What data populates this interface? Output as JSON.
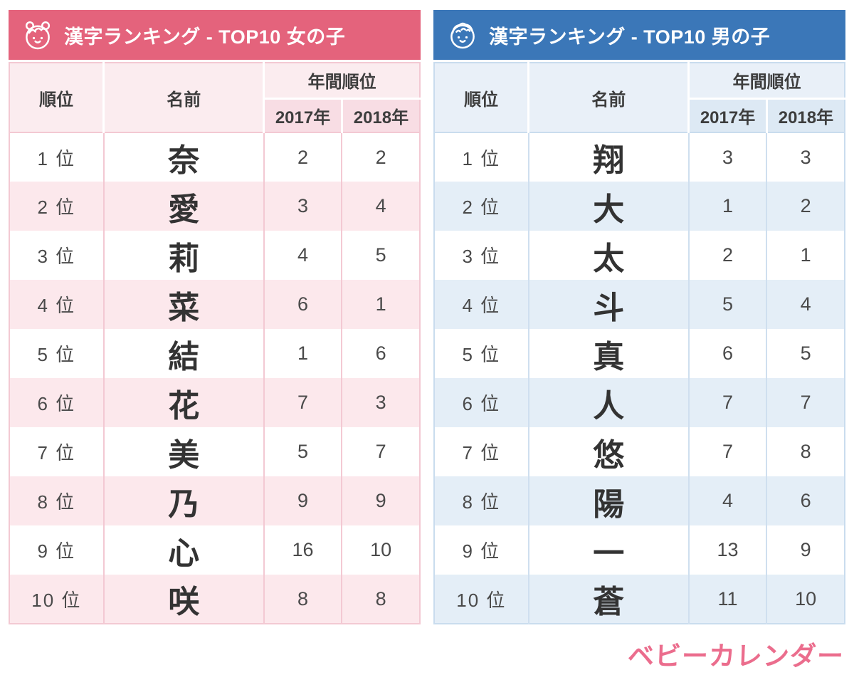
{
  "logo": {
    "text": "ベビーカレンダー",
    "color": "#eb6d8d"
  },
  "tables": [
    {
      "id": "girls",
      "title": "漢字ランキング - TOP10 女の子",
      "icon": "baby-girl-icon",
      "theme": {
        "header_bg": "#e4637c",
        "header_text": "#ffffff",
        "subheader_bg": "#fbecef",
        "year_header_bg": "#f8dde4",
        "alt_row_bg": "#fce8ec",
        "border": "#f3c9d3"
      },
      "columns": {
        "rank": "順位",
        "name": "名前",
        "annual": "年間順位",
        "y2017": "2017年",
        "y2018": "2018年"
      },
      "rows": [
        {
          "rank": "1 位",
          "name": "奈",
          "y2017": "2",
          "y2018": "2"
        },
        {
          "rank": "2 位",
          "name": "愛",
          "y2017": "3",
          "y2018": "4"
        },
        {
          "rank": "3 位",
          "name": "莉",
          "y2017": "4",
          "y2018": "5"
        },
        {
          "rank": "4 位",
          "name": "菜",
          "y2017": "6",
          "y2018": "1"
        },
        {
          "rank": "5 位",
          "name": "結",
          "y2017": "1",
          "y2018": "6"
        },
        {
          "rank": "6 位",
          "name": "花",
          "y2017": "7",
          "y2018": "3"
        },
        {
          "rank": "7 位",
          "name": "美",
          "y2017": "5",
          "y2018": "7"
        },
        {
          "rank": "8 位",
          "name": "乃",
          "y2017": "9",
          "y2018": "9"
        },
        {
          "rank": "9 位",
          "name": "心",
          "y2017": "16",
          "y2018": "10"
        },
        {
          "rank": "10 位",
          "name": "咲",
          "y2017": "8",
          "y2018": "8"
        }
      ]
    },
    {
      "id": "boys",
      "title": "漢字ランキング - TOP10 男の子",
      "icon": "baby-boy-icon",
      "theme": {
        "header_bg": "#3b77b8",
        "header_text": "#ffffff",
        "subheader_bg": "#e9f0f8",
        "year_header_bg": "#dde9f4",
        "alt_row_bg": "#e4eef7",
        "border": "#c9dcee"
      },
      "columns": {
        "rank": "順位",
        "name": "名前",
        "annual": "年間順位",
        "y2017": "2017年",
        "y2018": "2018年"
      },
      "rows": [
        {
          "rank": "1 位",
          "name": "翔",
          "y2017": "3",
          "y2018": "3"
        },
        {
          "rank": "2 位",
          "name": "大",
          "y2017": "1",
          "y2018": "2"
        },
        {
          "rank": "3 位",
          "name": "太",
          "y2017": "2",
          "y2018": "1"
        },
        {
          "rank": "4 位",
          "name": "斗",
          "y2017": "5",
          "y2018": "4"
        },
        {
          "rank": "5 位",
          "name": "真",
          "y2017": "6",
          "y2018": "5"
        },
        {
          "rank": "6 位",
          "name": "人",
          "y2017": "7",
          "y2018": "7"
        },
        {
          "rank": "7 位",
          "name": "悠",
          "y2017": "7",
          "y2018": "8"
        },
        {
          "rank": "8 位",
          "name": "陽",
          "y2017": "4",
          "y2018": "6"
        },
        {
          "rank": "9 位",
          "name": "一",
          "y2017": "13",
          "y2018": "9"
        },
        {
          "rank": "10 位",
          "name": "蒼",
          "y2017": "11",
          "y2018": "10"
        }
      ]
    }
  ]
}
